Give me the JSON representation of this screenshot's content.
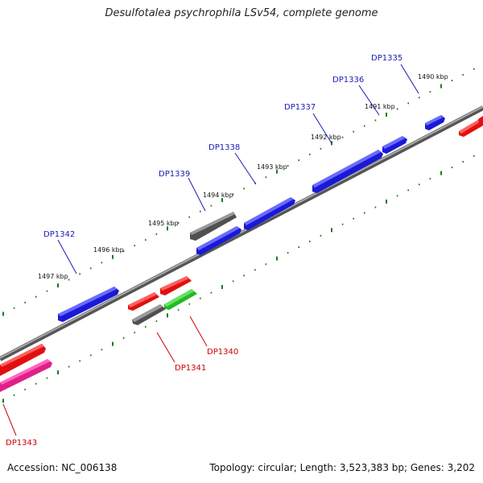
{
  "header": {
    "title": "Desulfotalea psychrophila LSv54, complete genome"
  },
  "footer": {
    "accession": "Accession: NC_006138",
    "summary": "Topology: circular; Length: 3,523,383 bp; Genes: 3,202"
  },
  "colors": {
    "forward_gene": "#1a1ad6",
    "reverse_gene": "#e01010",
    "grey_gene": "#555555",
    "green_gene": "#22bb22",
    "pink_gene": "#e0208a",
    "tick": "#1e7a1e",
    "label_forward": "#1a1ab4",
    "label_reverse": "#cc0000",
    "backbone": "#777777"
  },
  "scale_labels": [
    "1490 kbp",
    "1491 kbp",
    "1492 kbp",
    "1493 kbp",
    "1494 kbp",
    "1495 kbp",
    "1496 kbp",
    "1497 kbp"
  ],
  "gene_labels_forward": [
    "DP1335",
    "DP1336",
    "DP1337",
    "DP1338",
    "DP1339",
    "DP1342"
  ],
  "gene_labels_reverse": [
    "DP1340",
    "DP1341",
    "DP1343"
  ]
}
